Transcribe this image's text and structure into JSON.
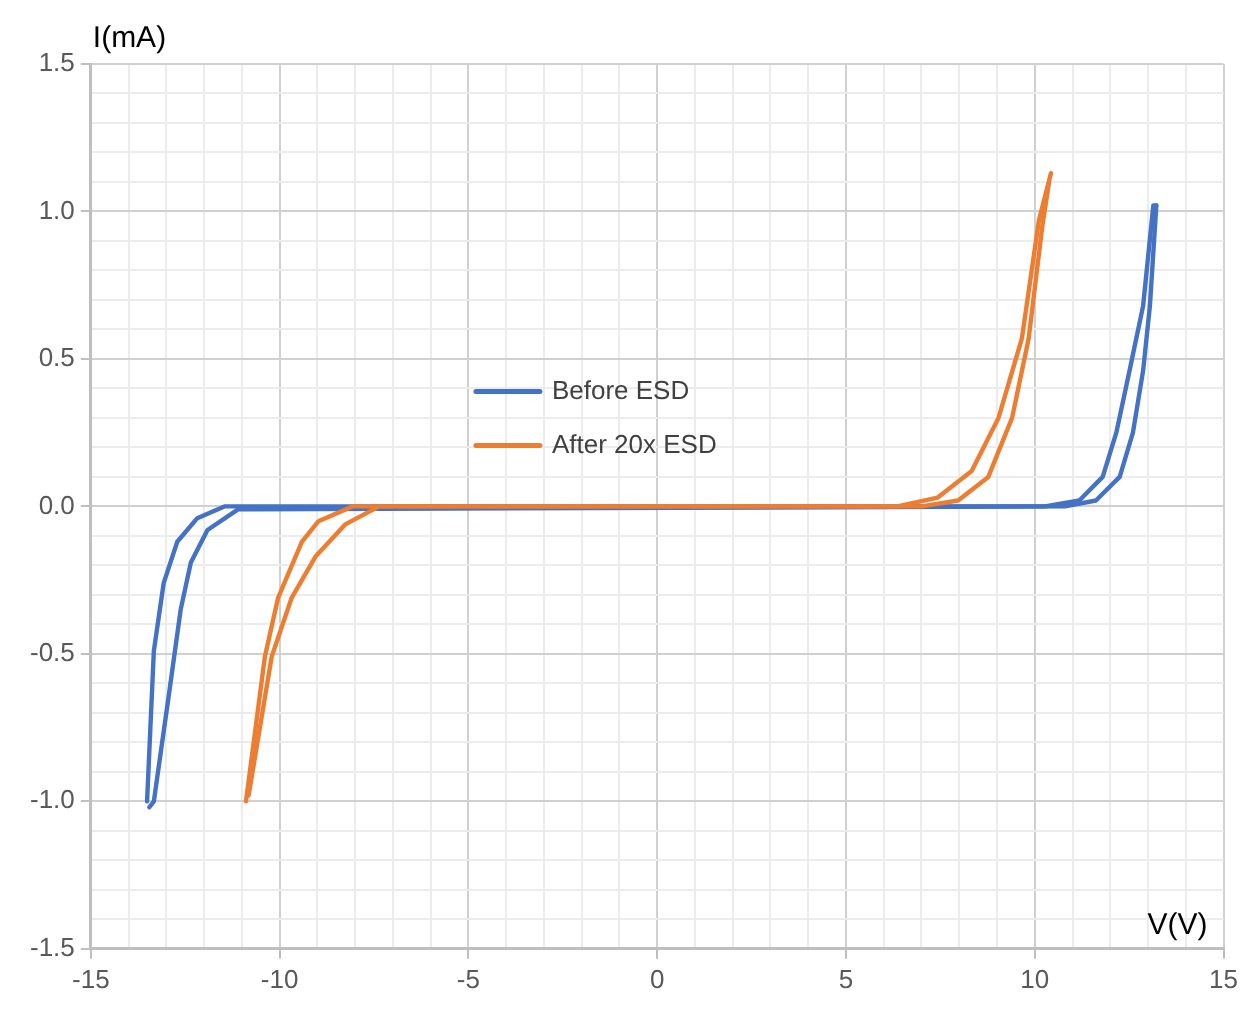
{
  "chart_data": {
    "type": "line",
    "xlabel": "V(V)",
    "ylabel": "I(mA)",
    "legend": "center",
    "grid": true,
    "marker": "none",
    "line_style": "solid",
    "xlim": [
      -15,
      15
    ],
    "ylim": [
      -1.5,
      1.5
    ],
    "xticks": [
      -15,
      {
        "value": -14,
        "label": null
      },
      {
        "value": -13,
        "label": null
      },
      {
        "value": -12,
        "label": null
      },
      {
        "value": -11,
        "label": null
      },
      -10,
      {
        "value": -9,
        "label": null
      },
      {
        "value": -8,
        "label": null
      },
      {
        "value": -7,
        "label": null
      },
      {
        "value": -6,
        "label": null
      },
      -5,
      {
        "value": -4,
        "label": null
      },
      {
        "value": -3,
        "label": null
      },
      {
        "value": -2,
        "label": null
      },
      {
        "value": -1,
        "label": null
      },
      0,
      {
        "value": 1,
        "label": null
      },
      {
        "value": 2,
        "label": null
      },
      {
        "value": 3,
        "label": null
      },
      {
        "value": 4,
        "label": null
      },
      5,
      {
        "value": 6,
        "label": null
      },
      {
        "value": 7,
        "label": null
      },
      {
        "value": 8,
        "label": null
      },
      {
        "value": 9,
        "label": null
      },
      10,
      {
        "value": 11,
        "label": null
      },
      {
        "value": 12,
        "label": null
      },
      {
        "value": 13,
        "label": null
      },
      {
        "value": 14,
        "label": null
      },
      15
    ],
    "yticks": [
      {
        "value": -1.5,
        "label": "-1.5"
      },
      {
        "value": -1.4,
        "label": null
      },
      {
        "value": -1.3,
        "label": null
      },
      {
        "value": -1.2,
        "label": null
      },
      {
        "value": -1.1,
        "label": null
      },
      {
        "value": -1,
        "label": "-1.0"
      },
      {
        "value": -0.9,
        "label": null
      },
      {
        "value": -0.8,
        "label": null
      },
      {
        "value": -0.7,
        "label": null
      },
      {
        "value": -0.6,
        "label": null
      },
      {
        "value": -0.5,
        "label": "-0.5"
      },
      {
        "value": -0.4,
        "label": null
      },
      {
        "value": -0.3,
        "label": null
      },
      {
        "value": -0.2,
        "label": null
      },
      {
        "value": -0.1,
        "label": null
      },
      {
        "value": 0,
        "label": "0.0"
      },
      {
        "value": 0.1,
        "label": null
      },
      {
        "value": 0.2,
        "label": null
      },
      {
        "value": 0.3,
        "label": null
      },
      {
        "value": 0.4,
        "label": null
      },
      {
        "value": 0.5,
        "label": "0.5"
      },
      {
        "value": 0.6,
        "label": null
      },
      {
        "value": 0.7,
        "label": null
      },
      {
        "value": 0.8,
        "label": null
      },
      {
        "value": 0.9,
        "label": null
      },
      {
        "value": 1,
        "label": "1.0"
      },
      {
        "value": 1.1,
        "label": null
      },
      {
        "value": 1.2,
        "label": null
      },
      {
        "value": 1.3,
        "label": null
      },
      {
        "value": 1.4,
        "label": null
      },
      {
        "value": 1.5,
        "label": "1.5"
      }
    ],
    "series": [
      {
        "name": "Before ESD",
        "color": "#4472c4",
        "x": [
          -13.51,
          -13.33,
          -13.07,
          -12.71,
          -12.18,
          -11.46,
          10.27,
          11.18,
          11.8,
          12.16,
          12.51,
          12.87,
          13.14,
          13.22
        ],
        "values": [
          -1.0,
          -0.49,
          -0.26,
          -0.12,
          -0.04,
          0,
          0,
          0.02,
          0.1,
          0.25,
          0.46,
          0.68,
          1.02,
          1.02
        ]
      },
      {
        "color": "#4472c4",
        "x": [
          13.22,
          13.05,
          12.87,
          12.6,
          12.25,
          11.62,
          10.8,
          -11.1,
          -11.91,
          -12.35,
          -12.62,
          -12.89,
          -13.33,
          -13.45
        ],
        "values": [
          1.02,
          0.68,
          0.46,
          0.25,
          0.1,
          0.02,
          0,
          -0.01,
          -0.08,
          -0.19,
          -0.35,
          -0.6,
          -1.0,
          -1.02
        ]
      },
      {
        "name": "After 20x ESD",
        "color": "#ed7d31",
        "x": [
          -10.89,
          -10.39,
          -10.04,
          -9.41,
          -8.97,
          -8.07,
          6.36,
          7.43,
          8.33,
          9.04,
          9.66,
          10.11,
          10.43
        ],
        "values": [
          -1.0,
          -0.51,
          -0.31,
          -0.12,
          -0.05,
          0,
          0,
          0.03,
          0.12,
          0.3,
          0.57,
          0.97,
          1.13
        ]
      },
      {
        "color": "#ed7d31",
        "x": [
          10.38,
          10.2,
          9.84,
          9.4,
          8.77,
          7.97,
          7.0,
          -7.36,
          -8.25,
          -9.05,
          -9.68,
          -10.21,
          -10.82
        ],
        "values": [
          1.1,
          0.95,
          0.57,
          0.3,
          0.1,
          0.02,
          0,
          0,
          -0.06,
          -0.17,
          -0.31,
          -0.51,
          -0.98
        ]
      }
    ]
  }
}
